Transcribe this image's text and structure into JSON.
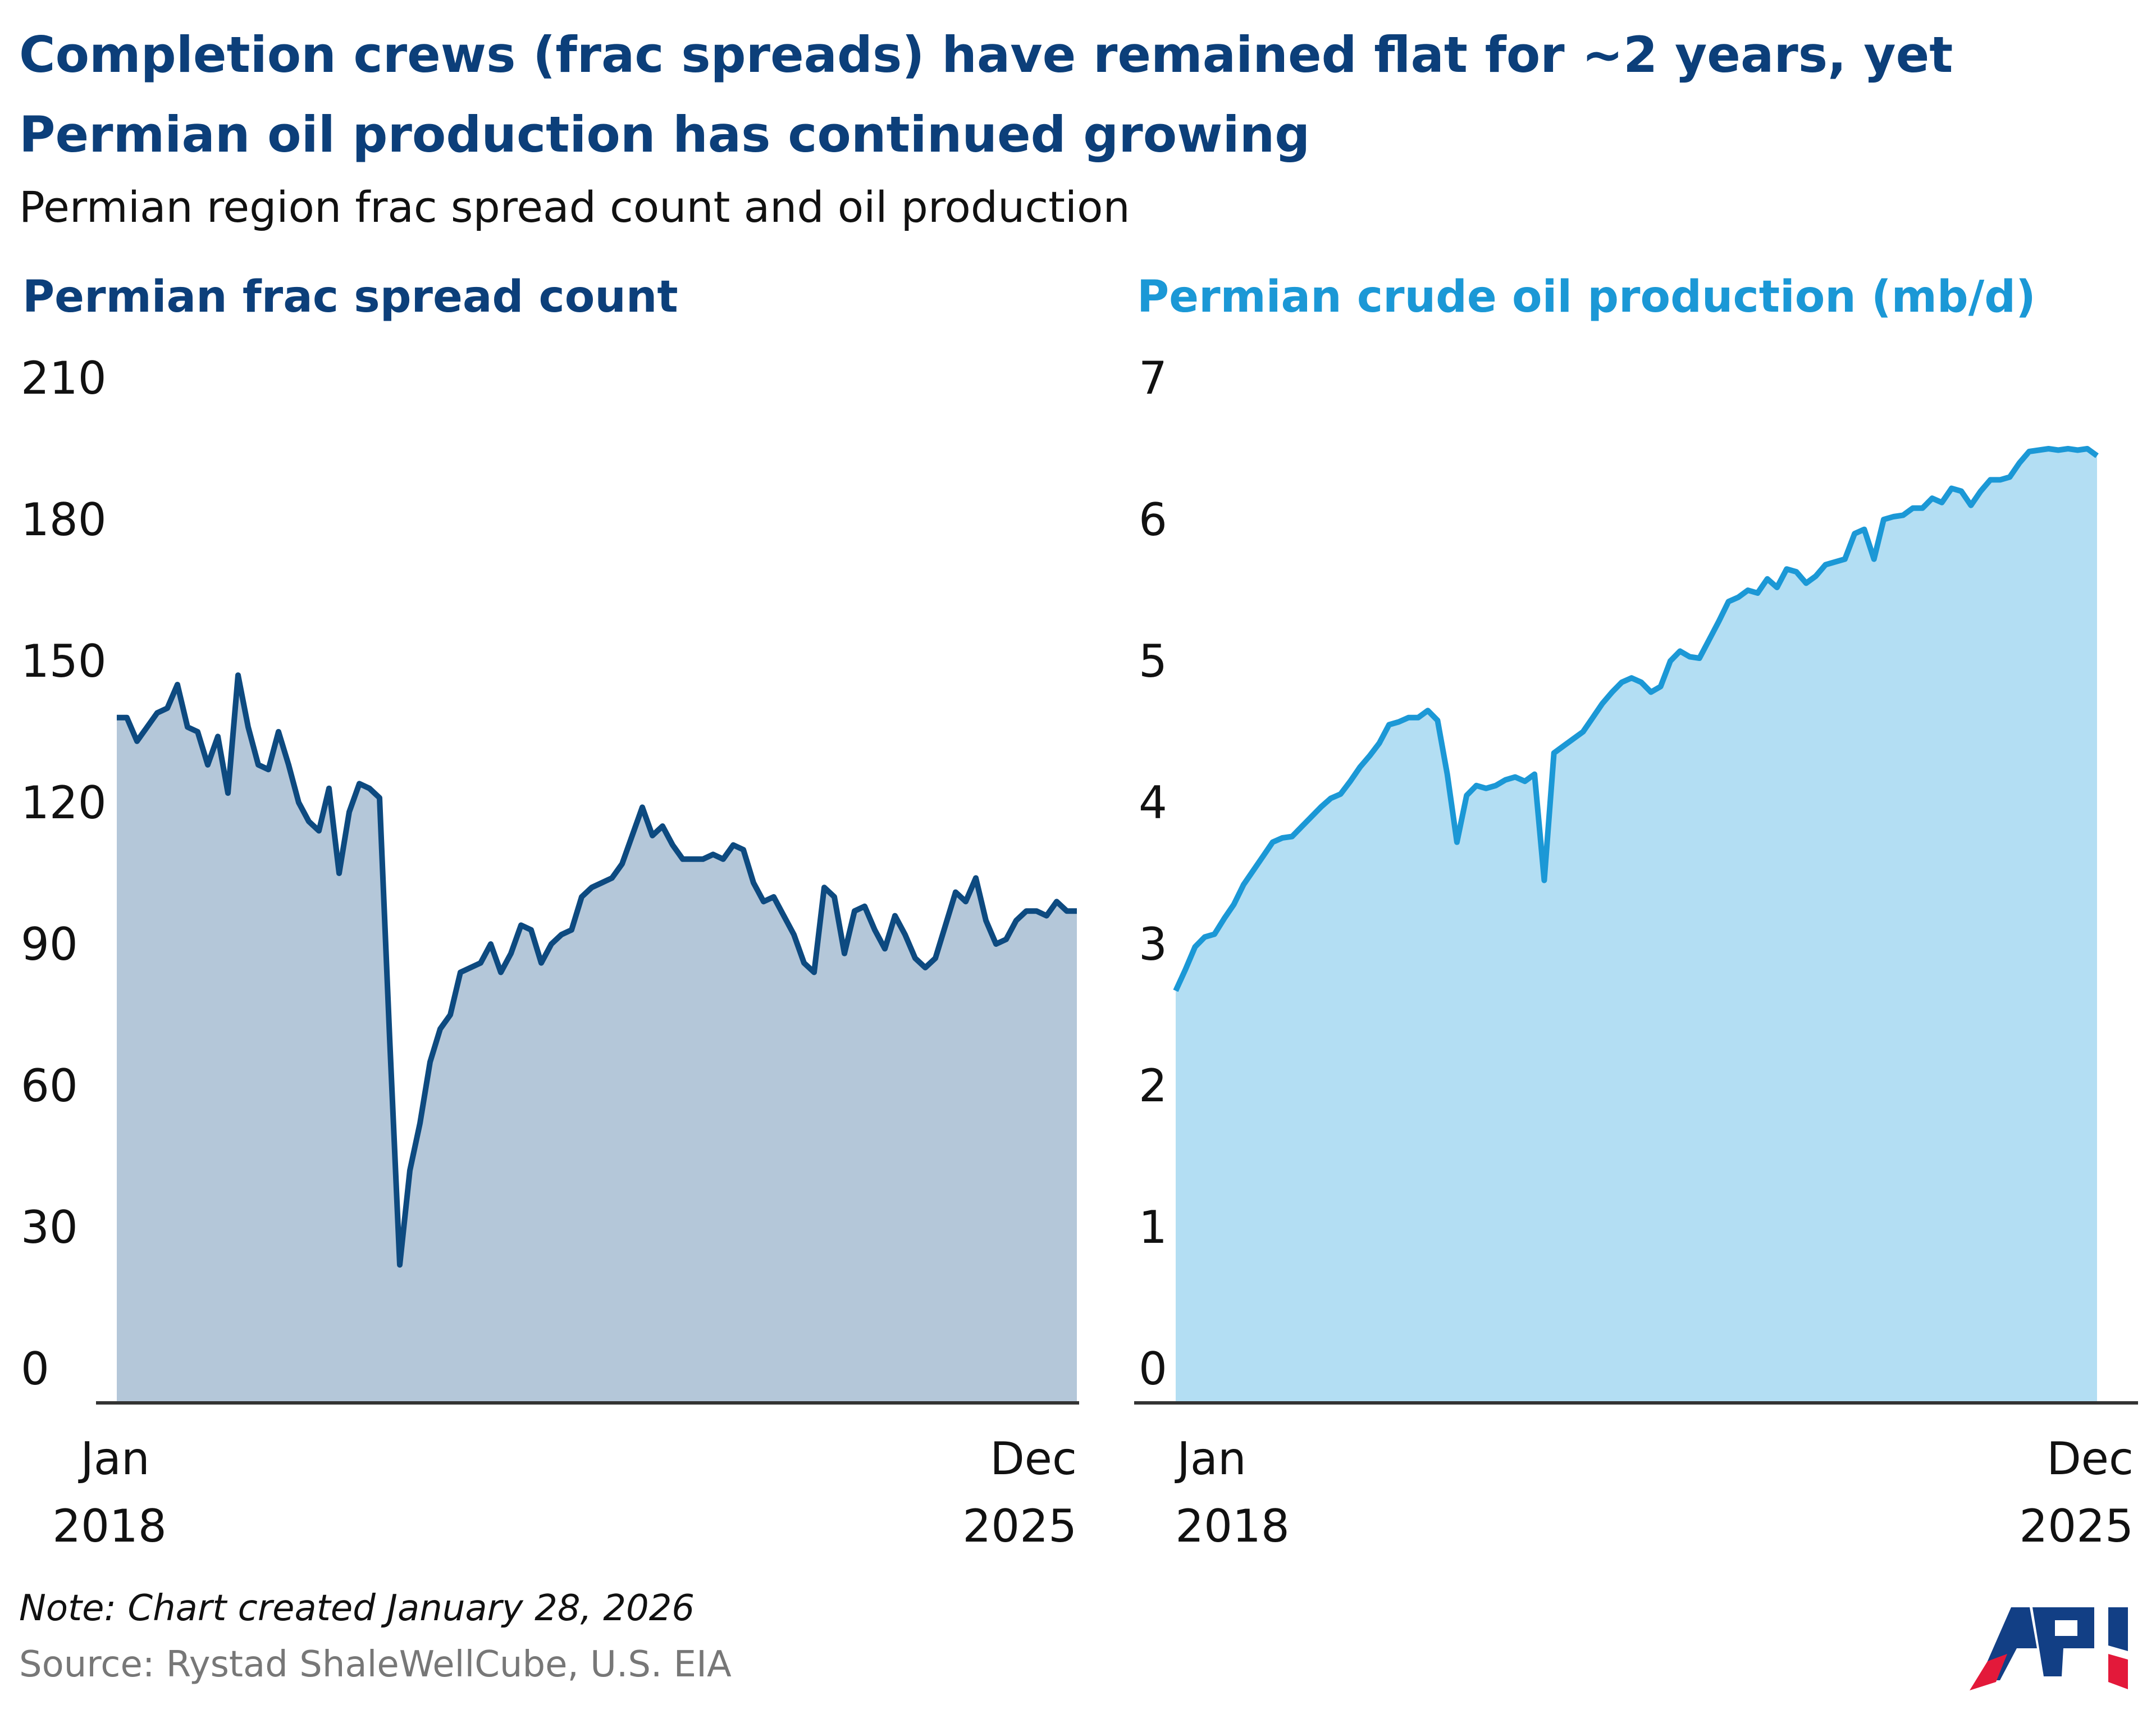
{
  "title_line1": "Completion crews (frac spreads) have remained flat for ~2 years, yet",
  "title_line2": "Permian oil production has continued growing",
  "subtitle": "Permian region frac spread count and oil production",
  "note": "Note: Chart created January 28, 2026",
  "source": "Source: Rystad ShaleWellCube, U.S. EIA",
  "logo_text": "API",
  "colors": {
    "title": "#0c3f7a",
    "left_line": "#0d4a80",
    "left_fill": "#b4c7d9",
    "right_line": "#1b98d6",
    "right_fill": "#b3def3"
  },
  "chart_data": [
    {
      "type": "area",
      "title": "Permian frac spread count",
      "ylim": [
        0,
        210
      ],
      "yticks": [
        "0",
        "30",
        "60",
        "90",
        "120",
        "150",
        "180",
        "210"
      ],
      "xtick_labels": [
        {
          "month": "Jan",
          "year": "2018"
        },
        {
          "month": "Dec",
          "year": "2025"
        }
      ],
      "x_range": [
        "2018-01",
        "2025-12"
      ],
      "grid": false,
      "frequency": "monthly",
      "values": [
        138,
        138,
        133,
        136,
        139,
        140,
        145,
        136,
        135,
        128,
        134,
        122,
        147,
        136,
        128,
        127,
        135,
        128,
        120,
        116,
        114,
        123,
        105,
        118,
        124,
        123,
        121,
        70,
        22,
        42,
        52,
        65,
        72,
        75,
        84,
        85,
        86,
        90,
        84,
        88,
        94,
        93,
        86,
        90,
        92,
        93,
        100,
        102,
        103,
        104,
        107,
        113,
        119,
        113,
        115,
        111,
        108,
        108,
        108,
        109,
        108,
        111,
        110,
        103,
        99,
        100,
        96,
        92,
        86,
        84,
        102,
        100,
        88,
        97,
        98,
        93,
        89,
        96,
        92,
        87,
        85,
        87,
        94,
        101,
        99,
        104,
        95,
        90,
        91,
        95,
        97,
        97,
        96,
        99,
        97,
        97
      ]
    },
    {
      "type": "area",
      "title": "Permian crude oil production (mb/d)",
      "ylim": [
        0,
        7
      ],
      "yticks": [
        "0",
        "1",
        "2",
        "3",
        "4",
        "5",
        "6",
        "7"
      ],
      "xtick_labels": [
        {
          "month": "Jan",
          "year": "2018"
        },
        {
          "month": "Dec",
          "year": "2025"
        }
      ],
      "x_range": [
        "2018-01",
        "2025-12"
      ],
      "grid": false,
      "frequency": "monthly",
      "values": [
        2.67,
        2.82,
        2.98,
        3.05,
        3.07,
        3.18,
        3.28,
        3.42,
        3.52,
        3.62,
        3.72,
        3.75,
        3.76,
        3.83,
        3.9,
        3.97,
        4.03,
        4.06,
        4.15,
        4.25,
        4.33,
        4.42,
        4.55,
        4.57,
        4.6,
        4.6,
        4.65,
        4.58,
        4.2,
        3.72,
        4.05,
        4.12,
        4.1,
        4.12,
        4.16,
        4.18,
        4.15,
        4.2,
        3.45,
        4.35,
        4.4,
        4.45,
        4.5,
        4.6,
        4.7,
        4.78,
        4.85,
        4.88,
        4.85,
        4.78,
        4.82,
        5.0,
        5.07,
        5.03,
        5.02,
        5.15,
        5.28,
        5.42,
        5.45,
        5.5,
        5.48,
        5.58,
        5.52,
        5.65,
        5.63,
        5.55,
        5.6,
        5.68,
        5.7,
        5.72,
        5.9,
        5.93,
        5.72,
        6.0,
        6.02,
        6.03,
        6.08,
        6.08,
        6.15,
        6.12,
        6.22,
        6.2,
        6.1,
        6.2,
        6.28,
        6.28,
        6.3,
        6.4,
        6.48,
        6.49,
        6.5,
        6.49,
        6.5,
        6.49,
        6.5,
        6.45
      ]
    }
  ]
}
